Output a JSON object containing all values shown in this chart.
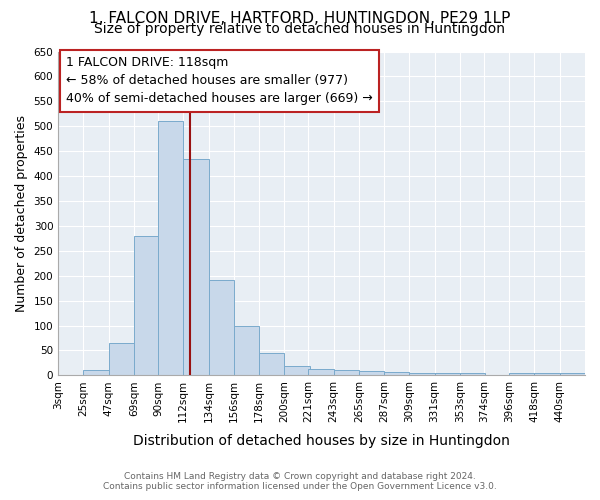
{
  "title": "1, FALCON DRIVE, HARTFORD, HUNTINGDON, PE29 1LP",
  "subtitle": "Size of property relative to detached houses in Huntingdon",
  "xlabel": "Distribution of detached houses by size in Huntingdon",
  "ylabel": "Number of detached properties",
  "footer_line1": "Contains HM Land Registry data © Crown copyright and database right 2024.",
  "footer_line2": "Contains public sector information licensed under the Open Government Licence v3.0.",
  "bins": [
    3,
    25,
    47,
    69,
    90,
    112,
    134,
    156,
    178,
    200,
    221,
    243,
    265,
    287,
    309,
    331,
    353,
    374,
    396,
    418,
    440
  ],
  "counts": [
    0,
    10,
    65,
    280,
    510,
    435,
    192,
    100,
    45,
    18,
    12,
    10,
    8,
    6,
    5,
    5,
    5,
    0,
    5,
    5,
    5
  ],
  "bar_color": "#c8d8ea",
  "bar_edge_color": "#7aaacc",
  "property_size": 118,
  "marker_color": "#991111",
  "annotation_title": "1 FALCON DRIVE: 118sqm",
  "annotation_line1": "← 58% of detached houses are smaller (977)",
  "annotation_line2": "40% of semi-detached houses are larger (669) →",
  "annotation_box_color": "#bb2222",
  "ylim": [
    0,
    650
  ],
  "yticks": [
    0,
    50,
    100,
    150,
    200,
    250,
    300,
    350,
    400,
    450,
    500,
    550,
    600,
    650
  ],
  "background_color": "#ffffff",
  "plot_bg_color": "#e8eef4",
  "grid_color": "#ffffff",
  "title_fontsize": 11,
  "subtitle_fontsize": 10,
  "tick_label_fontsize": 7.5,
  "ylabel_fontsize": 9,
  "xlabel_fontsize": 10,
  "annotation_fontsize": 9
}
